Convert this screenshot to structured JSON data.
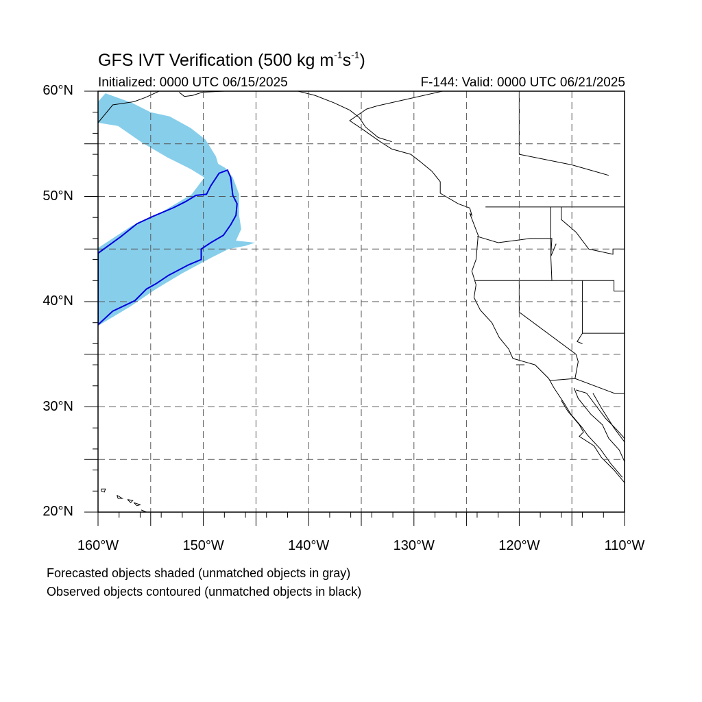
{
  "title": {
    "main": "GFS IVT Verification (500 kg m",
    "exp1": "-1",
    "mid": "s",
    "exp2": "-1",
    "end": ")"
  },
  "initialized": "Initialized: 0000 UTC 06/15/2025",
  "valid": "F-144: Valid: 0000 UTC 06/21/2025",
  "captions": [
    "Forecasted objects shaded (unmatched objects in gray)",
    "Observed objects contoured (unmatched objects in black)"
  ],
  "colors": {
    "forecast_fill": "#87ceeb",
    "observed_contour": "#0000dd",
    "coastline": "#000000",
    "grid": "#555555"
  },
  "chart_data": {
    "type": "map",
    "lon_range": [
      -160,
      -110
    ],
    "lat_range": [
      20,
      60
    ],
    "grid_lons": [
      -155,
      -150,
      -145,
      -140,
      -135,
      -130,
      -125,
      -120,
      -115
    ],
    "grid_lats": [
      25,
      30,
      35,
      40,
      45,
      50,
      55
    ],
    "lat_ticks": [
      {
        "value": 60,
        "label": "60°N"
      },
      {
        "value": 50,
        "label": "50°N"
      },
      {
        "value": 40,
        "label": "40°N"
      },
      {
        "value": 30,
        "label": "30°N"
      },
      {
        "value": 20,
        "label": "20°N"
      }
    ],
    "lon_ticks": [
      {
        "value": -160,
        "label": "160°W"
      },
      {
        "value": -150,
        "label": "150°W"
      },
      {
        "value": -140,
        "label": "140°W"
      },
      {
        "value": -130,
        "label": "130°W"
      },
      {
        "value": -120,
        "label": "120°W"
      },
      {
        "value": -110,
        "label": "110°W"
      }
    ],
    "forecast_object": [
      [
        -160,
        59.0
      ],
      [
        -159.3,
        59.8
      ],
      [
        -156.8,
        58.9
      ],
      [
        -155,
        58.0
      ],
      [
        -153.2,
        57.6
      ],
      [
        -151.2,
        56.5
      ],
      [
        -149.8,
        55.4
      ],
      [
        -148.8,
        53.8
      ],
      [
        -148.6,
        53.1
      ],
      [
        -147.9,
        52.7
      ],
      [
        -147.2,
        51.8
      ],
      [
        -146.6,
        50.2
      ],
      [
        -146.6,
        48.2
      ],
      [
        -146.4,
        46.9
      ],
      [
        -146.9,
        45.8
      ],
      [
        -145.1,
        45.6
      ],
      [
        -146.0,
        45.3
      ],
      [
        -147.6,
        45.0
      ],
      [
        -149.2,
        44.2
      ],
      [
        -152.0,
        42.7
      ],
      [
        -154.5,
        41.2
      ],
      [
        -157.0,
        39.5
      ],
      [
        -160,
        37.7
      ],
      [
        -160,
        45.1
      ],
      [
        -156.8,
        47.2
      ],
      [
        -153.8,
        48.6
      ],
      [
        -151.1,
        50.2
      ],
      [
        -149.9,
        51.8
      ],
      [
        -151.2,
        52.6
      ],
      [
        -153.4,
        53.7
      ],
      [
        -155.8,
        55.1
      ],
      [
        -158.1,
        56.7
      ],
      [
        -160,
        57.0
      ]
    ],
    "observed_object": [
      [
        -160,
        44.6
      ],
      [
        -157.8,
        46.2
      ],
      [
        -156.3,
        47.4
      ],
      [
        -154.8,
        48.1
      ],
      [
        -152.9,
        48.9
      ],
      [
        -151.7,
        49.5
      ],
      [
        -150.7,
        50.1
      ],
      [
        -149.7,
        50.2
      ],
      [
        -149.3,
        51.0
      ],
      [
        -148.5,
        52.2
      ],
      [
        -147.7,
        52.5
      ],
      [
        -147.4,
        51.8
      ],
      [
        -147.2,
        50.1
      ],
      [
        -146.8,
        49.3
      ],
      [
        -146.9,
        48.2
      ],
      [
        -147.4,
        47.3
      ],
      [
        -148.1,
        46.3
      ],
      [
        -149.3,
        45.6
      ],
      [
        -150.2,
        45.0
      ],
      [
        -150.2,
        44.0
      ],
      [
        -151.4,
        43.5
      ],
      [
        -153.3,
        42.5
      ],
      [
        -154.5,
        41.7
      ],
      [
        -155.4,
        41.2
      ],
      [
        -156.5,
        40.1
      ],
      [
        -158.6,
        39.1
      ],
      [
        -160,
        37.8
      ],
      [
        -160,
        44.6
      ]
    ],
    "boundaries": {
      "coast_na": [
        [
          -127.3,
          60
        ],
        [
          -133.5,
          58.6
        ],
        [
          -134.5,
          58.3
        ],
        [
          -136.1,
          57.2
        ],
        [
          -134.9,
          56.4
        ],
        [
          -133.2,
          55.2
        ],
        [
          -132.1,
          54.5
        ],
        [
          -130.3,
          54.0
        ],
        [
          -129.4,
          53.3
        ],
        [
          -128.3,
          52.4
        ],
        [
          -127.5,
          51.4
        ],
        [
          -127.5,
          50.3
        ],
        [
          -125.8,
          49.3
        ],
        [
          -124.7,
          48.9
        ],
        [
          -124.5,
          48.2
        ],
        [
          -124.7,
          48.4
        ],
        [
          -123.9,
          46.3
        ],
        [
          -124.0,
          45.2
        ],
        [
          -124.1,
          44.0
        ],
        [
          -124.5,
          42.9
        ],
        [
          -124.1,
          41.6
        ],
        [
          -124.3,
          40.4
        ],
        [
          -123.7,
          39.2
        ],
        [
          -122.6,
          38.0
        ],
        [
          -122.4,
          37.6
        ],
        [
          -121.9,
          36.6
        ],
        [
          -121.0,
          35.5
        ],
        [
          -120.6,
          34.6
        ],
        [
          -118.5,
          34.0
        ],
        [
          -117.2,
          32.7
        ],
        [
          -116.7,
          31.8
        ],
        [
          -115.7,
          30.3
        ],
        [
          -115.1,
          29.3
        ],
        [
          -114.0,
          28.0
        ],
        [
          -113.5,
          27.3
        ],
        [
          -112.3,
          26.0
        ],
        [
          -111.3,
          24.6
        ],
        [
          -110.2,
          23.3
        ]
      ],
      "gulf_california": [
        [
          -114.8,
          31.8
        ],
        [
          -114.4,
          30.8
        ],
        [
          -113.2,
          29.3
        ],
        [
          -112.1,
          28.3
        ],
        [
          -111.5,
          27.0
        ],
        [
          -110.5,
          25.9
        ],
        [
          -110.0,
          24.8
        ]
      ],
      "baja_west": [
        [
          -116.0,
          30.6
        ],
        [
          -115.4,
          29.6
        ],
        [
          -114.3,
          28.3
        ],
        [
          -113.9,
          27.6
        ],
        [
          -114.3,
          27.2
        ],
        [
          -112.9,
          26.3
        ],
        [
          -112.2,
          25.2
        ],
        [
          -111.0,
          24.0
        ],
        [
          -110.0,
          22.8
        ]
      ],
      "mainland_mexico_coast": [
        [
          -114.6,
          31.6
        ],
        [
          -113.6,
          31.3
        ],
        [
          -112.7,
          30.1
        ],
        [
          -111.8,
          28.9
        ],
        [
          -110.8,
          27.9
        ],
        [
          -110.0,
          27.0
        ]
      ],
      "alaska_coast": [
        [
          -160,
          57.0
        ],
        [
          -158.6,
          58.7
        ],
        [
          -156.6,
          59.0
        ],
        [
          -155.5,
          59.4
        ],
        [
          -154.2,
          60.0
        ]
      ],
      "alaska_kenai": [
        [
          -152.3,
          59.9
        ],
        [
          -151.8,
          59.5
        ],
        [
          -151.0,
          59.6
        ],
        [
          -150.1,
          59.9
        ],
        [
          -148.0,
          60.0
        ]
      ],
      "alaska_panhandle": [
        [
          -141.0,
          60.0
        ],
        [
          -139.4,
          59.6
        ],
        [
          -137.6,
          58.9
        ],
        [
          -136.1,
          58.2
        ],
        [
          -135.2,
          57.5
        ],
        [
          -134.6,
          56.6
        ],
        [
          -133.4,
          55.6
        ],
        [
          -132.1,
          55.2
        ]
      ],
      "us_canada_border": [
        [
          -123.2,
          49.0
        ],
        [
          -110,
          49.0
        ]
      ],
      "canada_coast_inland": [
        [
          -120,
          60
        ],
        [
          -120,
          54
        ],
        [
          -115,
          53
        ],
        [
          -111.5,
          52.0
        ]
      ],
      "wa_or": [
        [
          -124.0,
          46.2
        ],
        [
          -122.0,
          45.6
        ],
        [
          -119.0,
          46.0
        ],
        [
          -116.9,
          46.0
        ],
        [
          -117.0,
          44.3
        ],
        [
          -116.5,
          45.5
        ]
      ],
      "or_ca_nv_id": [
        [
          -124.2,
          42.0
        ],
        [
          -117.0,
          42.0
        ],
        [
          -111.0,
          42.0
        ],
        [
          -111.0,
          41.0
        ],
        [
          -110,
          41.0
        ]
      ],
      "idaho_west": [
        [
          -117.0,
          49.0
        ],
        [
          -117.0,
          44.3
        ],
        [
          -116.9,
          42.0
        ]
      ],
      "idaho_montana": [
        [
          -116.0,
          49.0
        ],
        [
          -116.0,
          47.8
        ],
        [
          -114.6,
          46.6
        ],
        [
          -113.4,
          45.0
        ],
        [
          -111.1,
          44.5
        ],
        [
          -111.1,
          45.0
        ],
        [
          -110,
          45.0
        ]
      ],
      "ca_nv": [
        [
          -120.0,
          42.0
        ],
        [
          -120.0,
          39.0
        ],
        [
          -114.6,
          35.0
        ],
        [
          -114.4,
          34.3
        ],
        [
          -114.7,
          32.7
        ]
      ],
      "nv_az_ut": [
        [
          -114.0,
          42.0
        ],
        [
          -114.0,
          37.0
        ],
        [
          -114.5,
          36.2
        ],
        [
          -114.0,
          36.0
        ]
      ],
      "ut_az": [
        [
          -114.0,
          37.0
        ],
        [
          -110,
          37.0
        ]
      ],
      "us_mexico_border": [
        [
          -117.1,
          32.5
        ],
        [
          -114.7,
          32.7
        ],
        [
          -111.0,
          31.3
        ],
        [
          -110,
          31.3
        ]
      ],
      "sonora_coast": [
        [
          -113.0,
          31.3
        ],
        [
          -112.2,
          29.9
        ],
        [
          -111.0,
          28.0
        ],
        [
          -109.5,
          26.0
        ]
      ],
      "islands_channel": [
        [
          -120.3,
          34.0
        ],
        [
          -119.5,
          34.0
        ]
      ],
      "hawaii_1": [
        [
          -159.7,
          22.2
        ],
        [
          -159.3,
          22.2
        ],
        [
          -159.4,
          21.9
        ],
        [
          -159.7,
          22.0
        ],
        [
          -159.7,
          22.2
        ]
      ],
      "hawaii_2": [
        [
          -158.2,
          21.6
        ],
        [
          -157.7,
          21.3
        ],
        [
          -158.1,
          21.3
        ],
        [
          -158.2,
          21.6
        ]
      ],
      "hawaii_3": [
        [
          -157.2,
          21.2
        ],
        [
          -156.7,
          21.1
        ],
        [
          -156.9,
          20.9
        ],
        [
          -157.2,
          21.2
        ]
      ],
      "hawaii_4": [
        [
          -156.6,
          20.9
        ],
        [
          -156.0,
          20.7
        ],
        [
          -156.3,
          20.6
        ],
        [
          -156.6,
          20.9
        ]
      ],
      "hawaii_5": [
        [
          -155.9,
          20.2
        ],
        [
          -155.0,
          19.8
        ],
        [
          -155.4,
          20.0
        ],
        [
          -155.9,
          20.2
        ]
      ]
    }
  }
}
